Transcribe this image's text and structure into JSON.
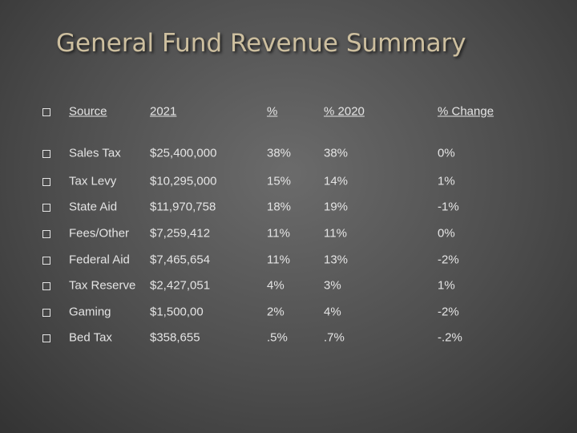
{
  "title": "General Fund Revenue Summary",
  "table": {
    "header": [
      "Source",
      "2021",
      "%",
      "% 2020",
      "% Change"
    ],
    "rows": [
      [
        "Sales Tax",
        "$25,400,000",
        "38%",
        "38%",
        "0%"
      ],
      [
        "Tax Levy",
        "$10,295,000",
        "15%",
        "14%",
        "1%"
      ],
      [
        "State Aid",
        "$11,970,758",
        "18%",
        "19%",
        "-1%"
      ],
      [
        "Fees/Other",
        "$7,259,412",
        "11%",
        "11%",
        "0%"
      ],
      [
        "Federal Aid",
        "$7,465,654",
        "11%",
        "13%",
        "-2%"
      ],
      [
        "Tax Reserve",
        "$2,427,051",
        "4%",
        "3%",
        "1%"
      ],
      [
        "Gaming",
        "$1,500,00",
        "2%",
        "4%",
        "-2%"
      ],
      [
        "Bed Tax",
        "$358,655",
        ".5%",
        ".7%",
        "-.2%"
      ]
    ]
  }
}
